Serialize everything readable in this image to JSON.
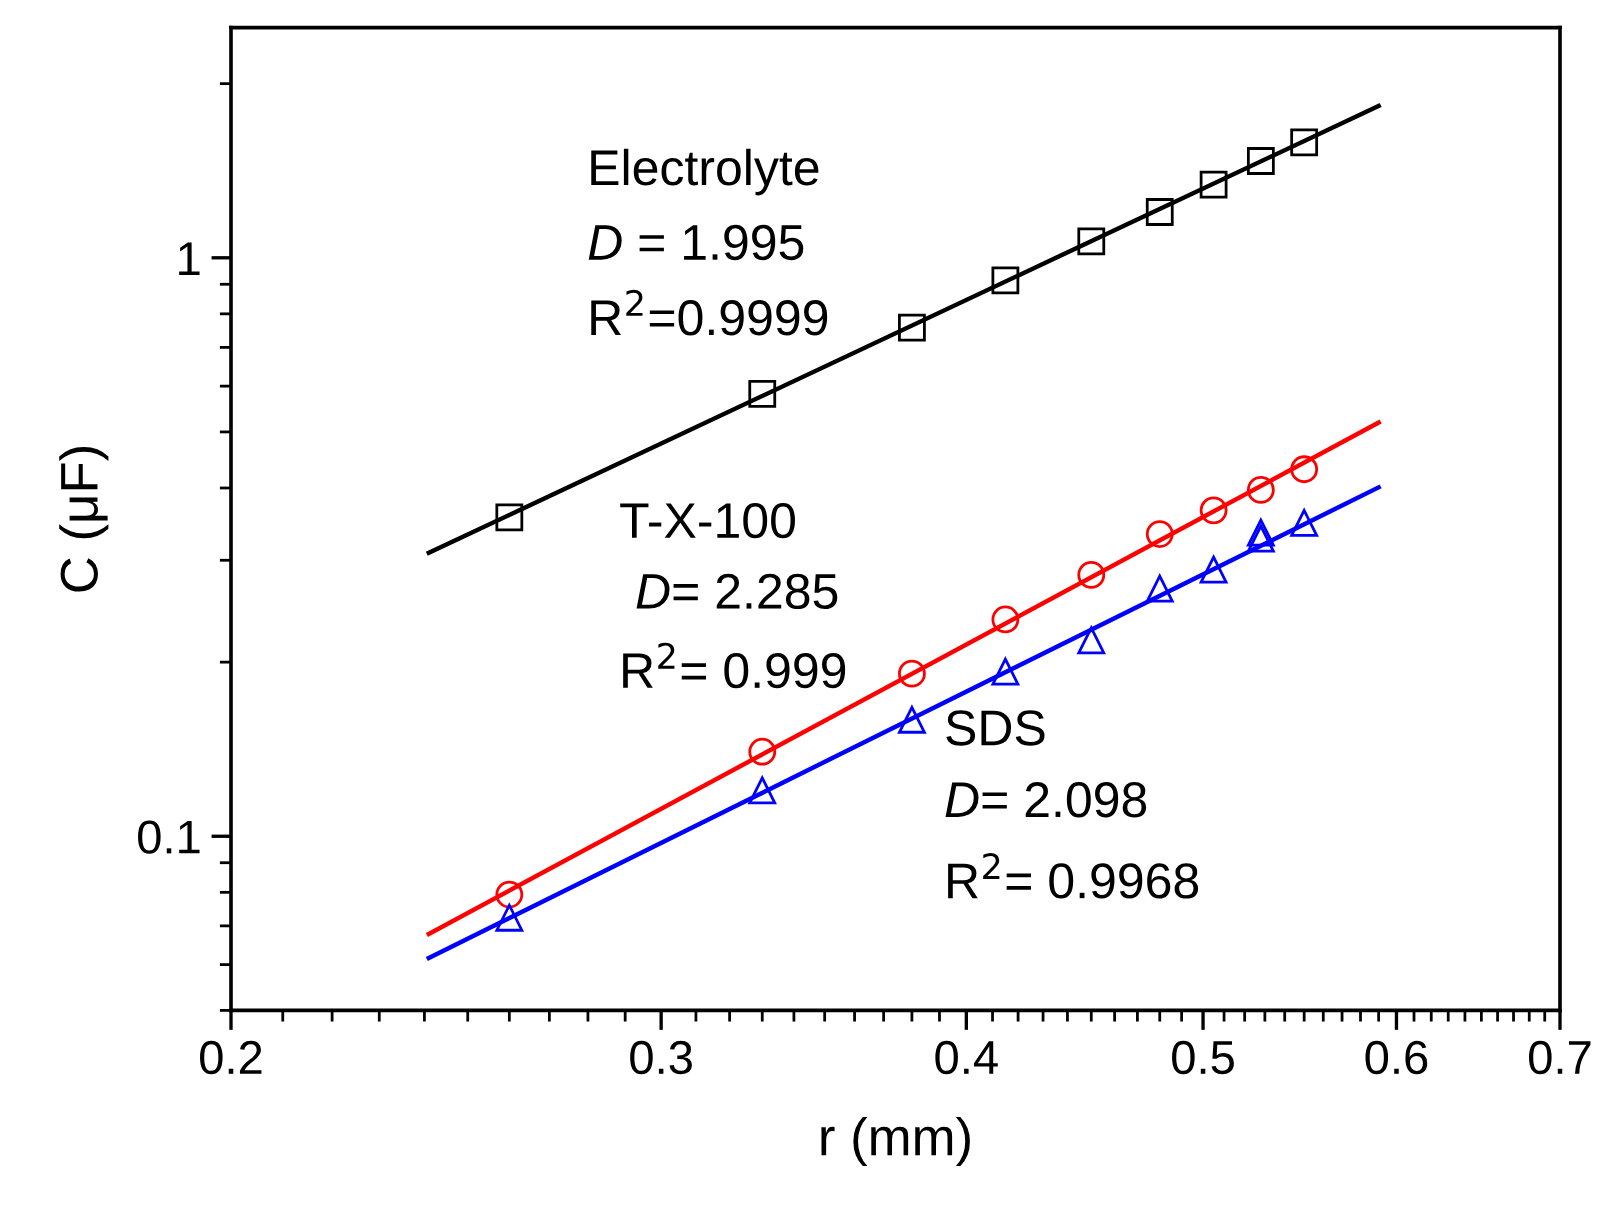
{
  "chart_data": {
    "type": "scatter",
    "xlabel": "r (mm)",
    "ylabel": "C (μF)",
    "log": "xy",
    "xlim": [
      0.2,
      0.7
    ],
    "xticks": [
      0.2,
      0.3,
      0.4,
      0.5,
      0.6,
      0.7
    ],
    "ylim": [
      0.05,
      2.5
    ],
    "yticks": [
      0.1,
      1
    ],
    "grid": false,
    "series": [
      {
        "marker": "square",
        "color": "#000000",
        "x": [
          0.26,
          0.33,
          0.38,
          0.415,
          0.45,
          0.48,
          0.505,
          0.528,
          0.55
        ],
        "values": [
          0.356,
          0.582,
          0.757,
          0.914,
          1.068,
          1.2,
          1.338,
          1.47,
          1.583
        ]
      },
      {
        "marker": "circle",
        "color": "#ff0000",
        "x": [
          0.26,
          0.33,
          0.38,
          0.415,
          0.45,
          0.48,
          0.505,
          0.528,
          0.55
        ],
        "values": [
          0.0793,
          0.14,
          0.191,
          0.237,
          0.283,
          0.333,
          0.366,
          0.397,
          0.431
        ]
      },
      {
        "marker": "triangle",
        "color": "#0000ff",
        "x": [
          0.26,
          0.33,
          0.38,
          0.415,
          0.45,
          0.48,
          0.505,
          0.528,
          0.528,
          0.55
        ],
        "values": [
          0.0723,
          0.12,
          0.159,
          0.1925,
          0.218,
          0.268,
          0.289,
          0.327,
          0.335,
          0.348
        ]
      },
      {
        "type": "line",
        "marker": "none",
        "line_style": "solid",
        "color": "#000000",
        "x": [
          0.241,
          0.59
        ],
        "values": [
          0.309,
          1.83
        ]
      },
      {
        "type": "line",
        "marker": "none",
        "line_style": "solid",
        "color": "#ff0000",
        "x": [
          0.241,
          0.59
        ],
        "values": [
          0.0678,
          0.519
        ]
      },
      {
        "type": "line",
        "marker": "none",
        "line_style": "solid",
        "color": "#0000ff",
        "x": [
          0.241,
          0.59
        ],
        "values": [
          0.0616,
          0.401
        ]
      }
    ],
    "annotations": [
      "Electrolyte",
      "D = 1.995",
      "R$^{2}$=0.9999",
      "T-X-100",
      "D= 2.285",
      "R$^{2}$= 0.999",
      "SDS",
      "D= 2.098",
      "R$^{2}$= 0.9968"
    ]
  }
}
